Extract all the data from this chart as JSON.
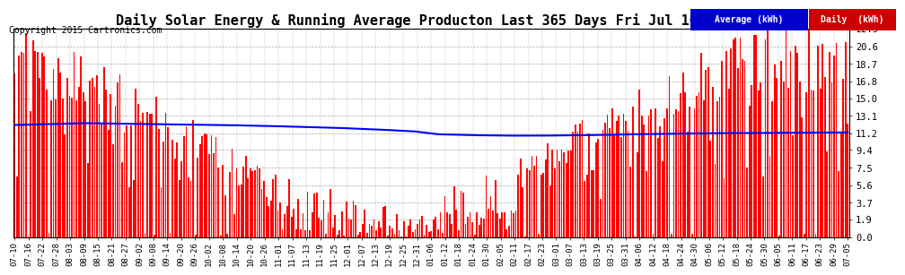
{
  "title": "Daily Solar Energy & Running Average Producton Last 365 Days Fri Jul 10 20:25",
  "copyright": "Copyright 2015 Cartronics.com",
  "yticks": [
    0.0,
    1.9,
    3.7,
    5.6,
    7.5,
    9.4,
    11.2,
    13.1,
    15.0,
    16.8,
    18.7,
    20.6,
    22.5
  ],
  "ymax": 22.5,
  "bar_color": "#ff0000",
  "avg_color": "#0000ff",
  "bg_color": "#ffffff",
  "legend_avg_bg": "#0000cc",
  "legend_daily_bg": "#cc0000",
  "legend_avg_text": "Average (kWh)",
  "legend_daily_text": "Daily  (kWh)",
  "title_fontsize": 11,
  "copyright_fontsize": 7,
  "xtick_labels": [
    "07-10",
    "07-16",
    "07-22",
    "07-28",
    "08-03",
    "08-09",
    "08-15",
    "08-21",
    "08-27",
    "09-02",
    "09-08",
    "09-14",
    "09-20",
    "09-26",
    "10-02",
    "10-08",
    "10-14",
    "10-20",
    "10-26",
    "11-01",
    "11-07",
    "11-13",
    "11-19",
    "11-25",
    "12-01",
    "12-07",
    "12-13",
    "12-19",
    "12-25",
    "12-31",
    "01-06",
    "01-12",
    "01-18",
    "01-24",
    "01-30",
    "02-05",
    "02-11",
    "02-17",
    "02-23",
    "03-01",
    "03-07",
    "03-13",
    "03-19",
    "03-25",
    "03-31",
    "04-06",
    "04-12",
    "04-18",
    "04-24",
    "04-30",
    "05-06",
    "05-12",
    "05-18",
    "05-24",
    "05-30",
    "06-05",
    "06-11",
    "06-17",
    "06-23",
    "06-29",
    "07-05"
  ],
  "avg_line_points": [
    [
      0,
      12.1
    ],
    [
      30,
      12.3
    ],
    [
      60,
      12.2
    ],
    [
      90,
      12.1
    ],
    [
      110,
      12.0
    ],
    [
      140,
      11.8
    ],
    [
      160,
      11.6
    ],
    [
      175,
      11.4
    ],
    [
      185,
      11.1
    ],
    [
      200,
      11.0
    ],
    [
      215,
      10.95
    ],
    [
      230,
      10.95
    ],
    [
      250,
      11.0
    ],
    [
      270,
      11.1
    ],
    [
      300,
      11.2
    ],
    [
      330,
      11.25
    ],
    [
      364,
      11.3
    ]
  ]
}
